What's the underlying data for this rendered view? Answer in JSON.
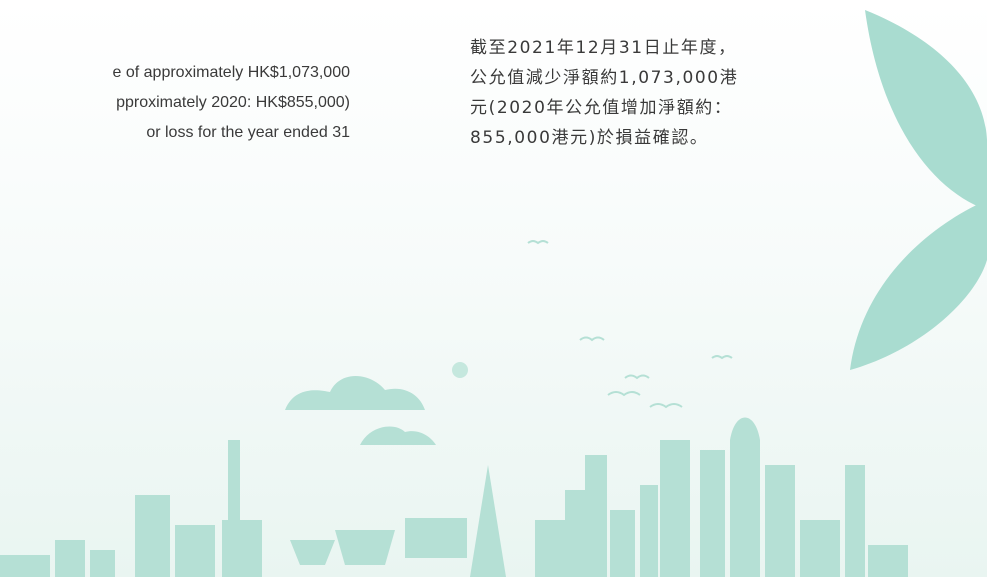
{
  "english": {
    "lines": [
      "e of approximately HK$1,073,000",
      "pproximately 2020: HK$855,000)",
      "or loss for the year ended 31"
    ]
  },
  "chinese": {
    "lines": [
      "截至2021年12月31日止年度，",
      "公允值減少淨額約1,073,000港",
      "元(2020年公允值增加淨額約：",
      "855,000港元)於損益確認。"
    ]
  }
}
